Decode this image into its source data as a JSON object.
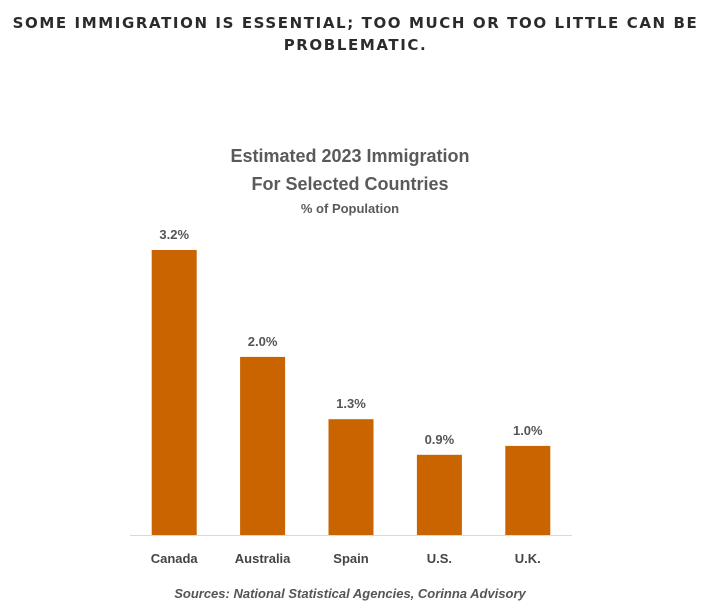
{
  "page": {
    "headline_line1": "SOME IMMIGRATION IS ESSENTIAL; TOO MUCH OR TOO LITTLE CAN BE",
    "headline_line2": "PROBLEMATIC."
  },
  "chart_data": {
    "type": "bar",
    "title_line1": "Estimated  2023 Immigration",
    "title_line2": "For Selected Countries",
    "subtitle": "% of Population",
    "categories": [
      "Canada",
      "Australia",
      "Spain",
      "U.S.",
      "U.K."
    ],
    "values": [
      3.2,
      2.0,
      1.3,
      0.9,
      1.0
    ],
    "value_labels": [
      "3.2%",
      "2.0%",
      "1.3%",
      "0.9%",
      "1.0%"
    ],
    "xlabel": "",
    "ylabel": "",
    "ylim": [
      0,
      3.2
    ],
    "grid": false,
    "legend": "none",
    "bar_color": "#c96400",
    "source": "Sources: National Statistical Agencies, Corinna Advisory"
  }
}
